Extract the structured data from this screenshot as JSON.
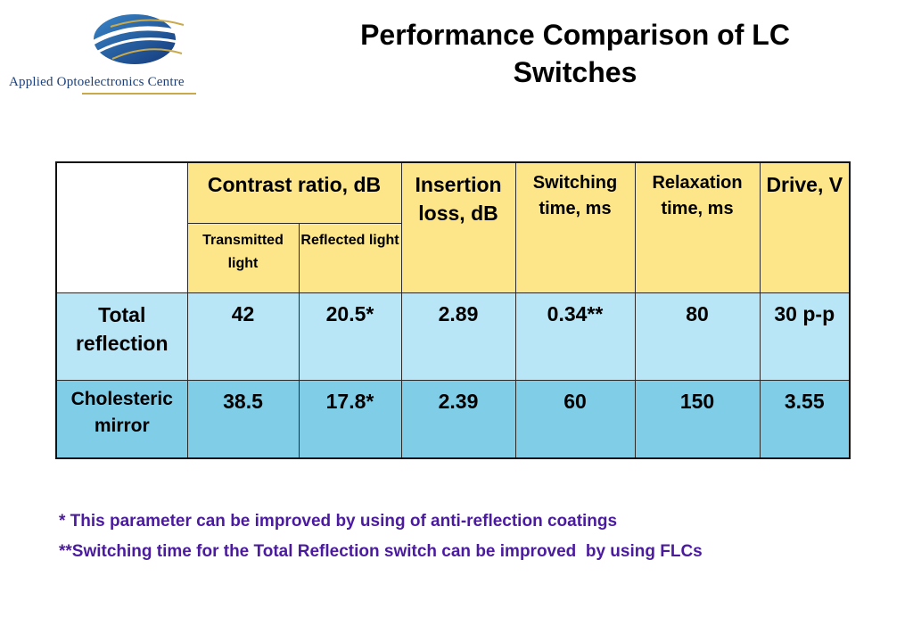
{
  "logo": {
    "organization": "Applied Optoelectronics Centre",
    "colors": {
      "primary": "#1a3f7a",
      "accent": "#c9a94a"
    }
  },
  "title": "Performance Comparison of LC Switches",
  "table": {
    "header": {
      "contrast_ratio": "Contrast ratio, dB",
      "transmitted": "Transmitted light",
      "reflected": "Reflected light",
      "insertion_loss": "Insertion loss, dB",
      "switching_time": "Switching time, ms",
      "relaxation_time": "Relaxation time, ms",
      "drive": "Drive, V"
    },
    "rows": [
      {
        "label": "Total reflection",
        "transmitted": "42",
        "reflected": "20.5*",
        "insertion_loss": "2.89",
        "switching_time": "0.34**",
        "relaxation_time": "80",
        "drive": "30 p-p"
      },
      {
        "label": "Cholesteric mirror",
        "transmitted": "38.5",
        "reflected": "17.8*",
        "insertion_loss": "2.39",
        "switching_time": "60",
        "relaxation_time": "150",
        "drive": "3.55"
      }
    ],
    "colors": {
      "header": "#fde58a",
      "row1": "#b8e6f7",
      "row2": "#80cde8"
    }
  },
  "notes": {
    "note1": "* This parameter can be improved by using of anti-reflection coatings",
    "note2": "**Switching time for the Total Reflection switch can be improved  by using FLCs",
    "color": "#4b1b9e"
  }
}
